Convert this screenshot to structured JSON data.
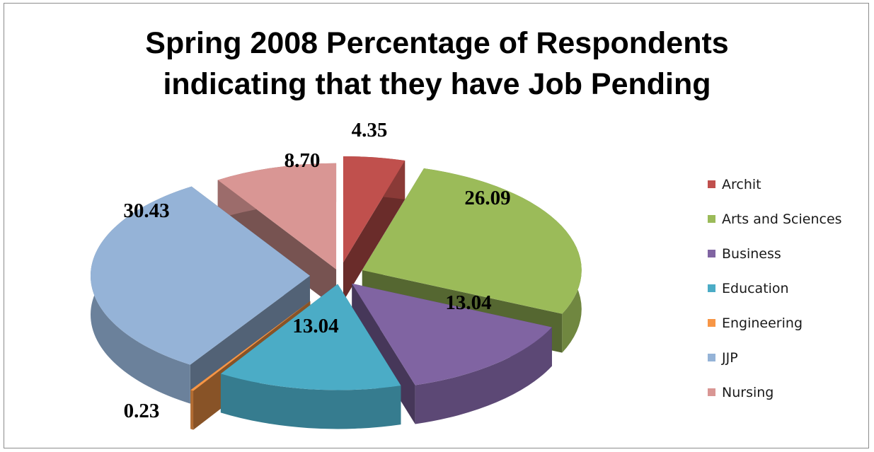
{
  "chart_data": {
    "type": "pie",
    "title_lines": [
      "Spring 2008 Percentage of Respondents",
      "indicating that they have Job Pending"
    ],
    "categories": [
      "Archit",
      "Arts and Sciences",
      "Business",
      "Education",
      "Engineering",
      "JJP",
      "Nursing"
    ],
    "values": [
      4.35,
      26.09,
      13.04,
      13.04,
      0.23,
      30.43,
      8.7
    ],
    "labels": [
      "4.35",
      "26.09",
      "13.04",
      "13.04",
      "0.23",
      "30.43",
      "8.70"
    ],
    "colors": [
      "#c0504d",
      "#9bbb59",
      "#8064a2",
      "#4bacc6",
      "#f79646",
      "#95b3d7",
      "#d99694"
    ],
    "legend_position": "right",
    "style": "3d-exploded"
  }
}
